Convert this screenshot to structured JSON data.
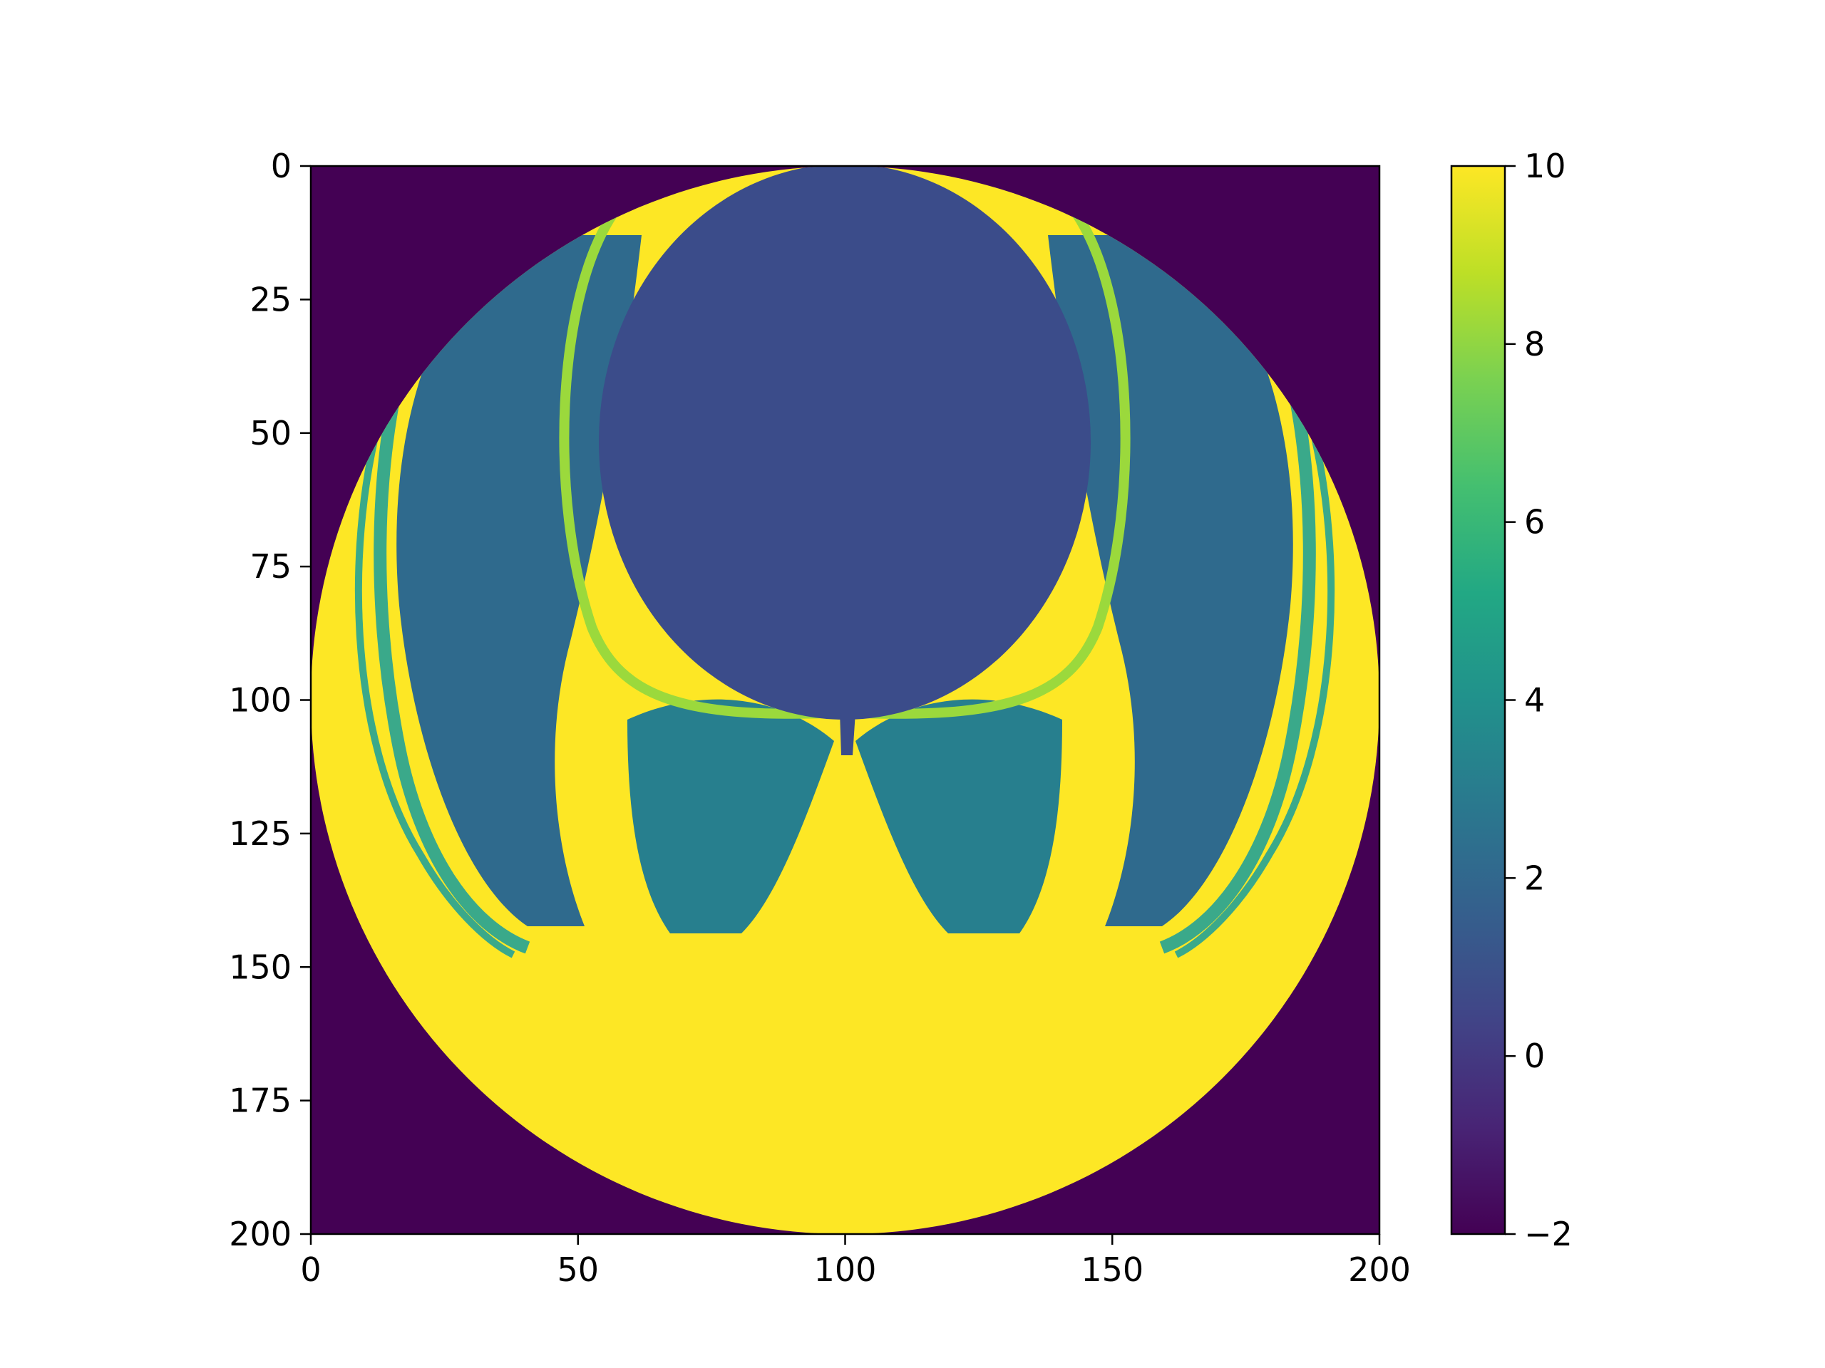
{
  "chart_data": {
    "type": "heatmap",
    "title": "",
    "xlabel": "",
    "ylabel": "",
    "grid": false,
    "colormap": "viridis",
    "xlim": [
      0,
      200
    ],
    "ylim": [
      200,
      0
    ],
    "y_axis_inverted": true,
    "x_ticks": [
      {
        "value": 0,
        "label": "0"
      },
      {
        "value": 50,
        "label": "50"
      },
      {
        "value": 100,
        "label": "100"
      },
      {
        "value": 150,
        "label": "150"
      },
      {
        "value": 200,
        "label": "200"
      }
    ],
    "y_ticks": [
      {
        "value": 0,
        "label": "0"
      },
      {
        "value": 25,
        "label": "25"
      },
      {
        "value": 50,
        "label": "50"
      },
      {
        "value": 75,
        "label": "75"
      },
      {
        "value": 100,
        "label": "100"
      },
      {
        "value": 125,
        "label": "125"
      },
      {
        "value": 150,
        "label": "150"
      },
      {
        "value": 175,
        "label": "175"
      },
      {
        "value": 200,
        "label": "200"
      }
    ],
    "colorbar": {
      "range": [
        -2,
        10
      ],
      "ticks": [
        {
          "value": 10,
          "label": "10"
        },
        {
          "value": 8,
          "label": "8"
        },
        {
          "value": 6,
          "label": "6"
        },
        {
          "value": 4,
          "label": "4"
        },
        {
          "value": 2,
          "label": "2"
        },
        {
          "value": 0,
          "label": "0"
        },
        {
          "value": -2,
          "label": "−2"
        }
      ]
    },
    "regions": [
      {
        "name": "outside-disk",
        "value": -2
      },
      {
        "name": "upper-central-lobe",
        "value": 0.6
      },
      {
        "name": "side-lobes",
        "value": 2.2
      },
      {
        "name": "central-lower-lobe",
        "value": 3.2
      },
      {
        "name": "lower-region",
        "value": 10
      }
    ],
    "colors": {
      "outside": "#440154",
      "upper_lobe": "#3b4c8a",
      "side_lobes": "#2f6a8d",
      "central_lower_lobe": "#277f8e",
      "boundary": "#3aa98a",
      "boundary_bright": "#9bd93c",
      "lower_region": "#fde725"
    }
  }
}
